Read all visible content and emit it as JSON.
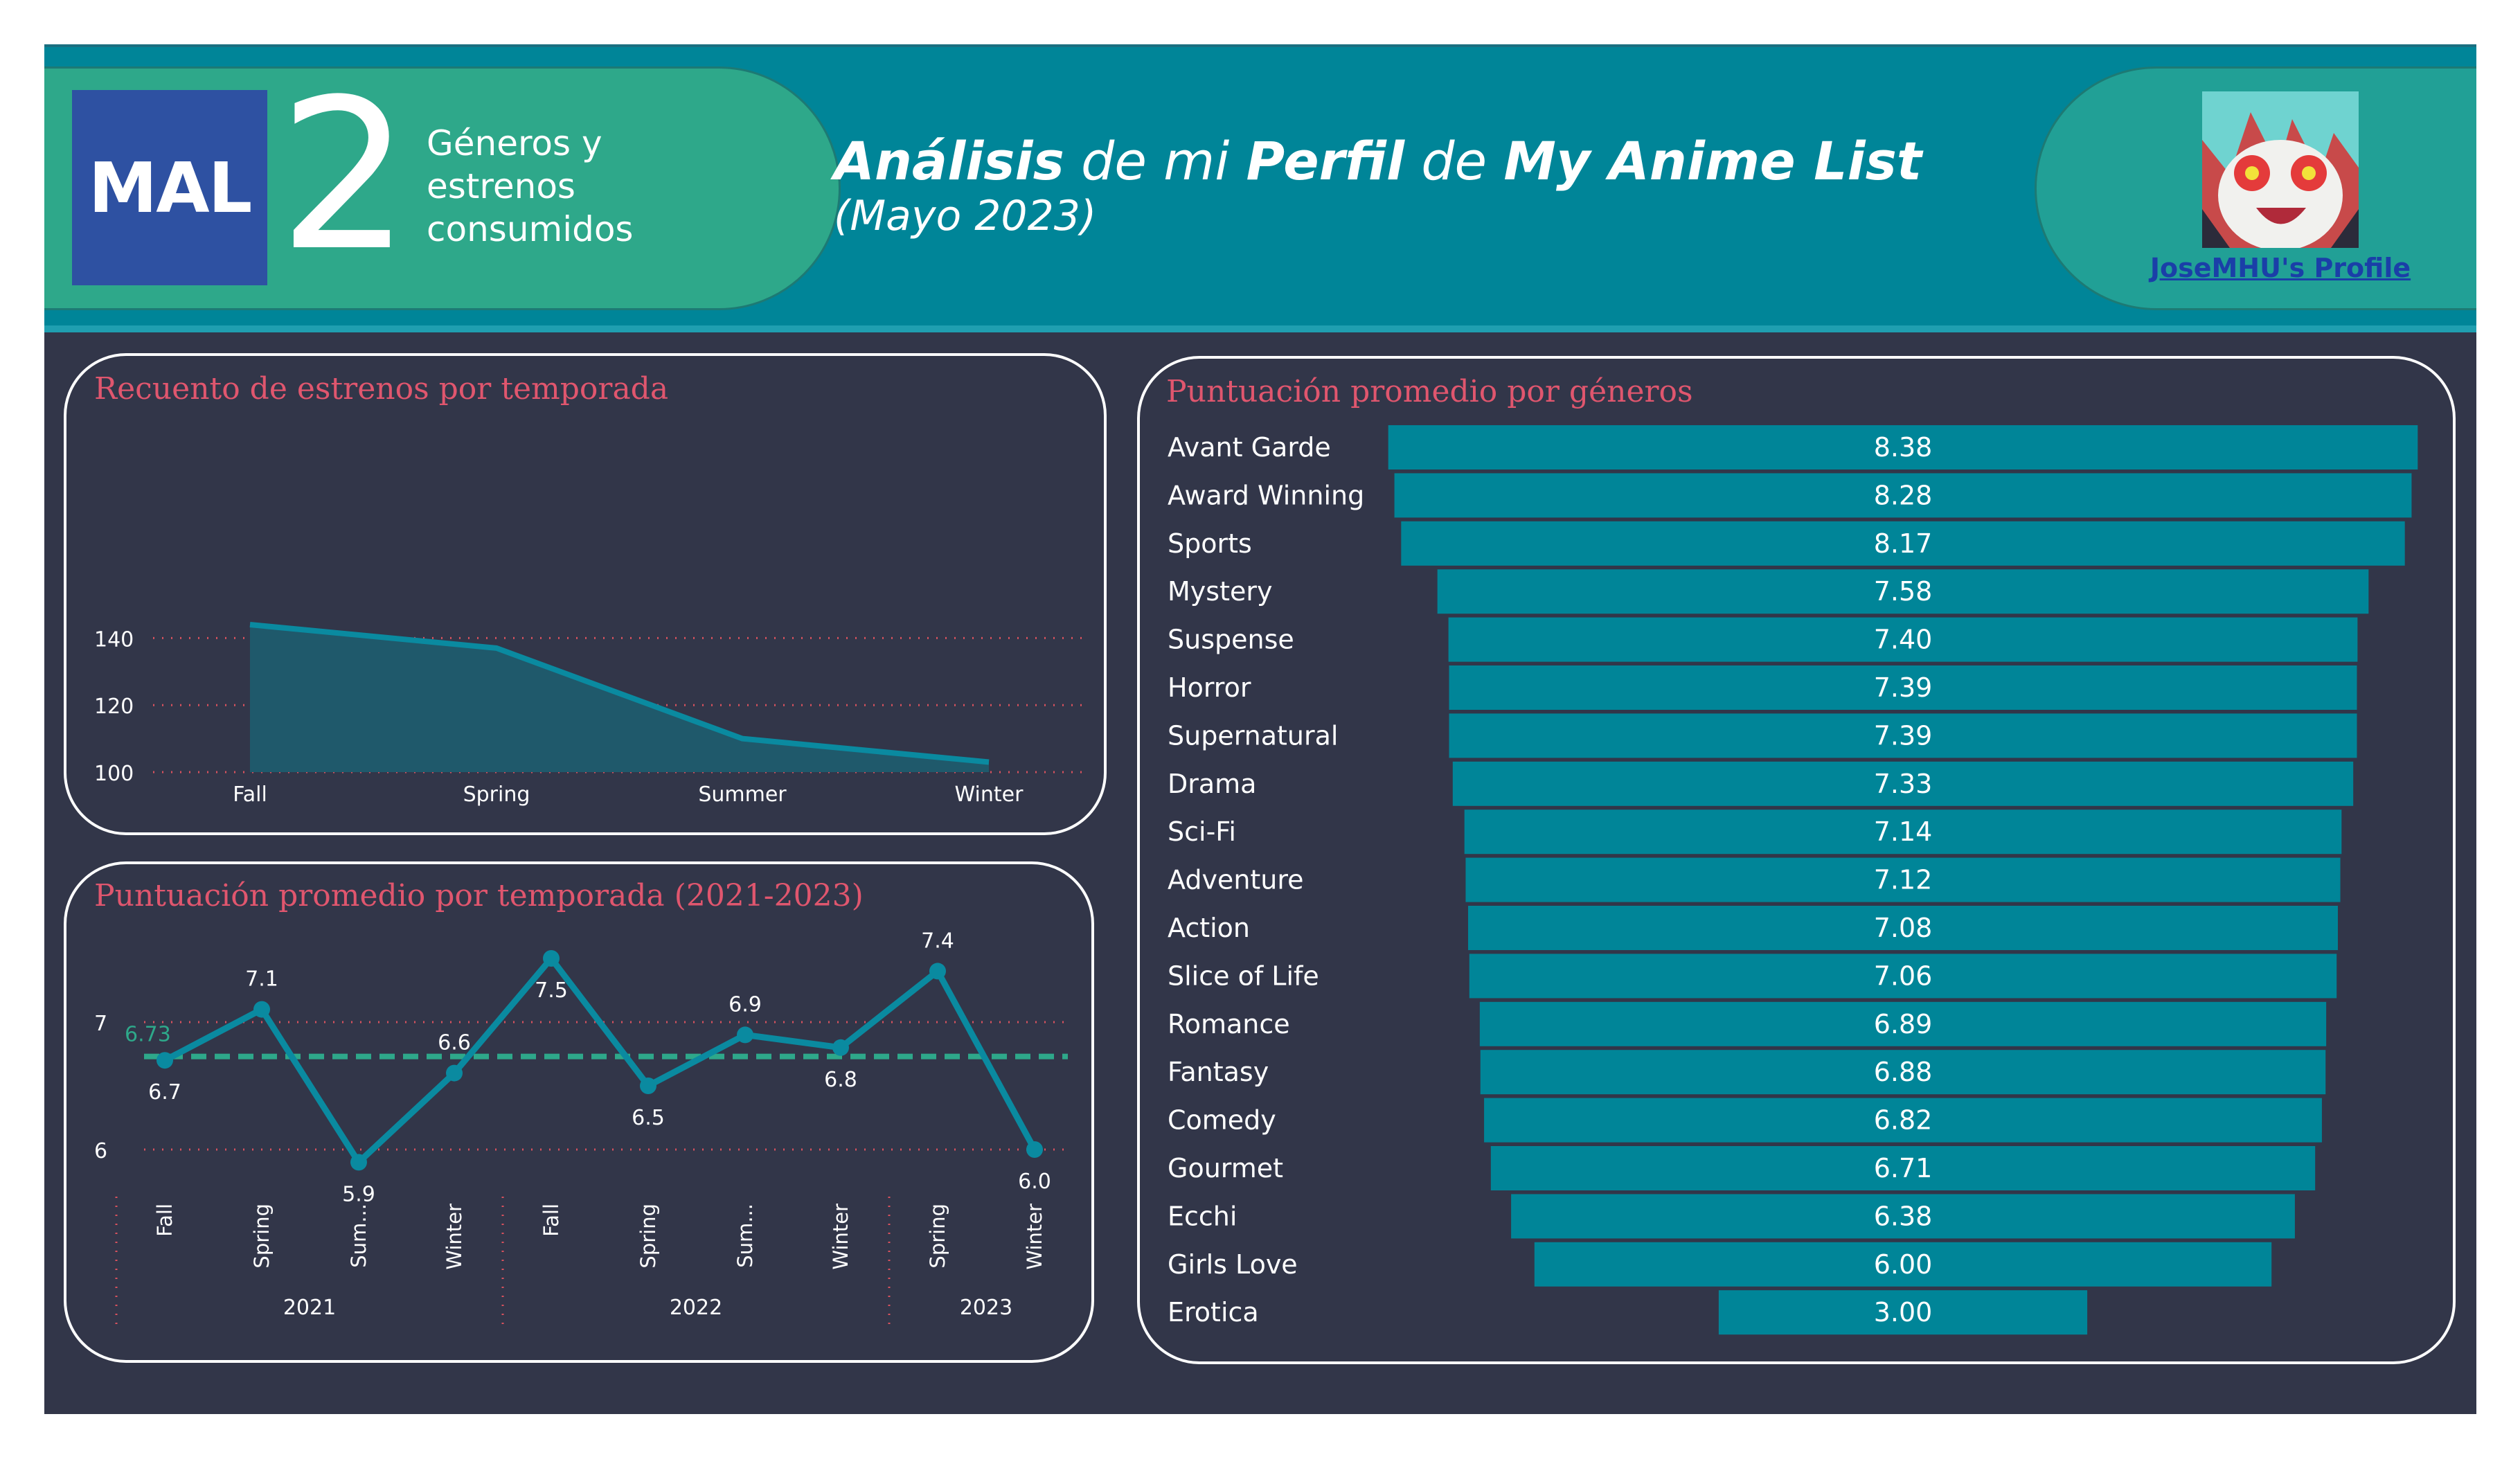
{
  "header": {
    "logo_text": "MAL",
    "number": "2",
    "section_label_line1": "Géneros y",
    "section_label_line2": "estrenos",
    "section_label_line3": "consumidos",
    "title_w1": "Análisis",
    "title_w2": " de mi ",
    "title_w3": "Perfil",
    "title_w4": " de ",
    "title_w5": "My Anime List",
    "subtitle": "(Mayo 2023)",
    "profile_link": "JoseMHU's Profile"
  },
  "colors": {
    "background": "#323649",
    "header": "#008598",
    "accent_green": "#2ea88a",
    "series": "#008598",
    "title_red": "#e0566e",
    "average_line": "#2ea88a"
  },
  "chart_data": [
    {
      "type": "area",
      "title": "Recuento de estrenos por temporada",
      "categories": [
        "Fall",
        "Spring",
        "Summer",
        "Winter"
      ],
      "values": [
        144,
        137,
        110,
        103
      ],
      "y_ticks": [
        "140",
        "120",
        "100"
      ],
      "ylim": [
        100,
        150
      ],
      "grid": "dotted horizontal"
    },
    {
      "type": "line",
      "title": "Puntuación promedio por temporada (2021-2023)",
      "categories": [
        "Fall",
        "Spring",
        "Sum...",
        "Winter",
        "Fall",
        "Spring",
        "Sum...",
        "Winter",
        "Spring",
        "Winter"
      ],
      "groups": [
        {
          "label": "2021",
          "count": 4
        },
        {
          "label": "2022",
          "count": 4
        },
        {
          "label": "2023",
          "count": 2
        }
      ],
      "values": [
        6.7,
        7.1,
        5.9,
        6.6,
        7.5,
        6.5,
        6.9,
        6.8,
        7.4,
        6.0
      ],
      "data_labels": [
        "6.7",
        "7.1",
        "5.9",
        "6.6",
        "7.5",
        "6.5",
        "6.9",
        "6.8",
        "7.4",
        "6.0"
      ],
      "average": 6.73,
      "average_label": "6.73",
      "y_ticks": [
        "7",
        "6"
      ],
      "ylim": [
        5.7,
        7.7
      ],
      "grid": "dotted horizontal"
    },
    {
      "type": "bar",
      "orientation": "horizontal-centered",
      "title": "Puntuación promedio por géneros",
      "categories": [
        "Avant Garde",
        "Award Winning",
        "Sports",
        "Mystery",
        "Suspense",
        "Horror",
        "Supernatural",
        "Drama",
        "Sci-Fi",
        "Adventure",
        "Action",
        "Slice of Life",
        "Romance",
        "Fantasy",
        "Comedy",
        "Gourmet",
        "Ecchi",
        "Girls Love",
        "Erotica"
      ],
      "values": [
        8.38,
        8.28,
        8.17,
        7.58,
        7.4,
        7.39,
        7.39,
        7.33,
        7.14,
        7.12,
        7.08,
        7.06,
        6.89,
        6.88,
        6.82,
        6.71,
        6.38,
        6.0,
        3.0
      ],
      "data_labels": [
        "8.38",
        "8.28",
        "8.17",
        "7.58",
        "7.40",
        "7.39",
        "7.39",
        "7.33",
        "7.14",
        "7.12",
        "7.08",
        "7.06",
        "6.89",
        "6.88",
        "6.82",
        "6.71",
        "6.38",
        "6.00",
        "3.00"
      ]
    }
  ]
}
